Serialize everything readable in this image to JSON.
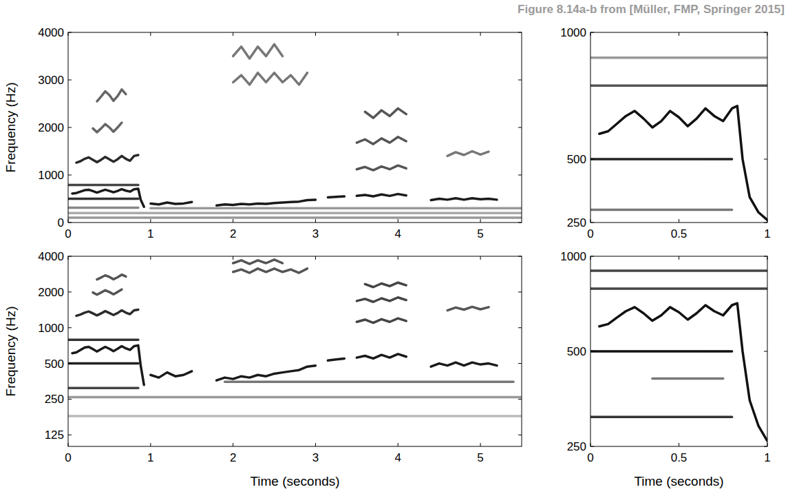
{
  "title": "Figure 8.14a-b from [Müller, FMP, Springer 2015]",
  "chart_data": [
    {
      "type": "line",
      "ylabel": "Frequency (Hz)",
      "xlim": [
        0,
        5.5
      ],
      "ylim": [
        0,
        4000
      ],
      "xticks": [
        0,
        1,
        2,
        3,
        4,
        5
      ],
      "yticks": [
        0,
        1000,
        2000,
        3000,
        4000
      ],
      "grid": false,
      "series": [
        {
          "color": "#1a1a1a",
          "x": [
            0.05,
            0.1,
            0.15,
            0.2,
            0.25,
            0.3,
            0.35,
            0.4,
            0.45,
            0.5,
            0.55,
            0.6,
            0.65,
            0.7,
            0.75,
            0.8,
            0.85,
            0.88,
            0.92,
            0.96,
            1.0,
            1.1,
            1.2,
            1.3,
            1.4,
            1.5,
            1.6,
            1.8,
            1.9,
            2.0,
            2.1,
            2.2,
            2.3,
            2.4,
            2.5,
            2.6,
            2.7,
            2.8,
            2.9,
            3.0,
            3.05,
            3.15,
            3.25,
            3.35,
            3.45,
            3.5,
            3.6,
            3.7,
            3.8,
            3.9,
            4.0,
            4.1,
            4.3,
            4.4,
            4.5,
            4.6,
            4.7,
            4.8,
            4.9,
            5.0,
            5.1,
            5.2
          ],
          "values": [
            610,
            620,
            650,
            680,
            690,
            660,
            630,
            660,
            690,
            665,
            635,
            665,
            700,
            670,
            650,
            700,
            710,
            480,
            330,
            null,
            400,
            380,
            420,
            390,
            400,
            430,
            null,
            360,
            380,
            370,
            390,
            380,
            400,
            390,
            410,
            420,
            430,
            440,
            470,
            480,
            null,
            530,
            540,
            550,
            null,
            560,
            580,
            550,
            590,
            560,
            600,
            570,
            null,
            470,
            500,
            480,
            510,
            480,
            510,
            490,
            500,
            480
          ]
        },
        {
          "color": "#2a2a2a",
          "x": [
            0.1,
            0.15,
            0.2,
            0.25,
            0.3,
            0.35,
            0.4,
            0.45,
            0.5,
            0.55,
            0.6,
            0.65,
            0.7,
            0.75,
            0.8,
            0.85
          ],
          "values": [
            1260,
            1290,
            1340,
            1370,
            1320,
            1270,
            1320,
            1380,
            1330,
            1280,
            1330,
            1400,
            1340,
            1300,
            1400,
            1420
          ]
        },
        {
          "color": "#666666",
          "x": [
            0.3,
            0.35,
            0.4,
            0.45,
            0.5,
            0.55,
            0.6,
            0.65
          ],
          "values": [
            1980,
            1900,
            1980,
            2070,
            2000,
            1910,
            2000,
            2100
          ]
        },
        {
          "color": "#666666",
          "x": [
            0.35,
            0.4,
            0.45,
            0.5,
            0.55,
            0.6,
            0.65,
            0.7
          ],
          "values": [
            2550,
            2650,
            2760,
            2680,
            2560,
            2660,
            2800,
            2700
          ]
        },
        {
          "color": "#777777",
          "x": [
            2.0,
            2.1,
            2.2,
            2.3,
            2.4,
            2.5,
            2.6,
            2.7,
            2.8,
            2.9
          ],
          "values": [
            2950,
            3100,
            2900,
            3150,
            2950,
            3150,
            2950,
            3100,
            2900,
            3150
          ]
        },
        {
          "color": "#777777",
          "x": [
            2.0,
            2.1,
            2.2,
            2.3,
            2.4,
            2.5,
            2.6
          ],
          "values": [
            3500,
            3700,
            3450,
            3700,
            3500,
            3750,
            3500
          ]
        },
        {
          "color": "#555555",
          "x": [
            3.5,
            3.6,
            3.7,
            3.8,
            3.9,
            4.0,
            4.1
          ],
          "values": [
            1120,
            1170,
            1100,
            1180,
            1120,
            1200,
            1140
          ]
        },
        {
          "color": "#555555",
          "x": [
            3.5,
            3.6,
            3.7,
            3.8,
            3.9,
            4.0,
            4.1
          ],
          "values": [
            1680,
            1750,
            1650,
            1770,
            1680,
            1800,
            1710
          ]
        },
        {
          "color": "#555555",
          "x": [
            3.6,
            3.7,
            3.8,
            3.9,
            4.0,
            4.1
          ],
          "values": [
            2330,
            2200,
            2360,
            2240,
            2400,
            2280
          ]
        },
        {
          "color": "#777777",
          "x": [
            4.6,
            4.7,
            4.8,
            4.9,
            5.0,
            5.1
          ],
          "values": [
            1400,
            1480,
            1420,
            1500,
            1430,
            1490
          ]
        },
        {
          "color": "#333333",
          "x": [
            0,
            0.85
          ],
          "values": [
            500,
            500
          ]
        },
        {
          "color": "#444444",
          "x": [
            0,
            0.85
          ],
          "values": [
            790,
            790
          ]
        },
        {
          "color": "#888888",
          "x": [
            0,
            0.85
          ],
          "values": [
            310,
            310
          ]
        },
        {
          "color": "#999999",
          "x": [
            0,
            5.5
          ],
          "values": [
            100,
            100
          ]
        },
        {
          "color": "#aaaaaa",
          "x": [
            0,
            5.5
          ],
          "values": [
            200,
            200
          ]
        },
        {
          "color": "#999999",
          "x": [
            1.0,
            5.5
          ],
          "values": [
            300,
            300
          ]
        }
      ]
    },
    {
      "type": "line",
      "xlim": [
        0,
        1
      ],
      "ylim": [
        250,
        1000
      ],
      "xticks": [
        0,
        0.5,
        1
      ],
      "yticks": [
        250,
        500,
        1000
      ],
      "grid": false,
      "series": [
        {
          "color": "#111111",
          "x": [
            0.05,
            0.1,
            0.15,
            0.2,
            0.25,
            0.3,
            0.35,
            0.4,
            0.45,
            0.5,
            0.55,
            0.6,
            0.65,
            0.7,
            0.75,
            0.8,
            0.83,
            0.86,
            0.9,
            0.95,
            1.0
          ],
          "values": [
            600,
            610,
            640,
            670,
            690,
            660,
            625,
            650,
            690,
            665,
            630,
            660,
            700,
            670,
            650,
            700,
            710,
            500,
            350,
            290,
            260
          ]
        },
        {
          "color": "#222222",
          "x": [
            0,
            0.8
          ],
          "values": [
            500,
            500
          ]
        },
        {
          "color": "#555555",
          "x": [
            0,
            1
          ],
          "values": [
            790,
            790
          ]
        },
        {
          "color": "#777777",
          "x": [
            0,
            0.8
          ],
          "values": [
            300,
            300
          ]
        },
        {
          "color": "#999999",
          "x": [
            0,
            1
          ],
          "values": [
            900,
            900
          ]
        }
      ]
    },
    {
      "type": "line",
      "ylabel": "Frequency (Hz)",
      "xlabel": "Time (seconds)",
      "log": "y",
      "xlim": [
        0,
        5.5
      ],
      "ylim": [
        100,
        4000
      ],
      "xticks": [
        0,
        1,
        2,
        3,
        4,
        5
      ],
      "yticks": [
        125,
        250,
        500,
        1000,
        2000,
        4000
      ],
      "grid": false,
      "series": [
        {
          "color": "#1a1a1a",
          "x": [
            0.05,
            0.1,
            0.15,
            0.2,
            0.25,
            0.3,
            0.35,
            0.4,
            0.45,
            0.5,
            0.55,
            0.6,
            0.65,
            0.7,
            0.75,
            0.8,
            0.85,
            0.88,
            0.92,
            0.96,
            1.0,
            1.1,
            1.2,
            1.3,
            1.4,
            1.5,
            1.6,
            1.8,
            1.9,
            2.0,
            2.1,
            2.2,
            2.3,
            2.4,
            2.5,
            2.6,
            2.7,
            2.8,
            2.9,
            3.0,
            3.05,
            3.15,
            3.25,
            3.35,
            3.45,
            3.5,
            3.6,
            3.7,
            3.8,
            3.9,
            4.0,
            4.1,
            4.3,
            4.4,
            4.5,
            4.6,
            4.7,
            4.8,
            4.9,
            5.0,
            5.1,
            5.2
          ],
          "values": [
            610,
            620,
            650,
            680,
            690,
            660,
            630,
            660,
            690,
            665,
            635,
            665,
            700,
            670,
            650,
            700,
            710,
            480,
            330,
            null,
            400,
            380,
            420,
            390,
            400,
            430,
            null,
            360,
            380,
            370,
            390,
            380,
            400,
            390,
            410,
            420,
            430,
            440,
            470,
            480,
            null,
            530,
            540,
            550,
            null,
            560,
            580,
            550,
            590,
            560,
            600,
            570,
            null,
            470,
            500,
            480,
            510,
            480,
            510,
            490,
            500,
            480
          ]
        },
        {
          "color": "#2a2a2a",
          "x": [
            0.1,
            0.15,
            0.2,
            0.25,
            0.3,
            0.35,
            0.4,
            0.45,
            0.5,
            0.55,
            0.6,
            0.65,
            0.7,
            0.75,
            0.8,
            0.85
          ],
          "values": [
            1260,
            1290,
            1340,
            1370,
            1320,
            1270,
            1320,
            1380,
            1330,
            1280,
            1330,
            1400,
            1340,
            1300,
            1400,
            1420
          ]
        },
        {
          "color": "#555555",
          "x": [
            0.3,
            0.35,
            0.4,
            0.45,
            0.5,
            0.55,
            0.6,
            0.65
          ],
          "values": [
            1980,
            1900,
            1980,
            2070,
            2000,
            1910,
            2000,
            2100
          ]
        },
        {
          "color": "#555555",
          "x": [
            0.35,
            0.4,
            0.45,
            0.5,
            0.55,
            0.6,
            0.65,
            0.7
          ],
          "values": [
            2550,
            2650,
            2760,
            2680,
            2560,
            2660,
            2800,
            2700
          ]
        },
        {
          "color": "#555555",
          "x": [
            2.0,
            2.1,
            2.2,
            2.3,
            2.4,
            2.5,
            2.6,
            2.7,
            2.8,
            2.9
          ],
          "values": [
            2950,
            3100,
            2900,
            3150,
            2950,
            3150,
            2950,
            3100,
            2900,
            3150
          ]
        },
        {
          "color": "#555555",
          "x": [
            2.0,
            2.1,
            2.2,
            2.3,
            2.4,
            2.5,
            2.6
          ],
          "values": [
            3500,
            3700,
            3450,
            3700,
            3500,
            3750,
            3500
          ]
        },
        {
          "color": "#444444",
          "x": [
            3.5,
            3.6,
            3.7,
            3.8,
            3.9,
            4.0,
            4.1
          ],
          "values": [
            1120,
            1170,
            1100,
            1180,
            1120,
            1200,
            1140
          ]
        },
        {
          "color": "#444444",
          "x": [
            3.5,
            3.6,
            3.7,
            3.8,
            3.9,
            4.0,
            4.1
          ],
          "values": [
            1680,
            1750,
            1650,
            1770,
            1680,
            1800,
            1710
          ]
        },
        {
          "color": "#444444",
          "x": [
            3.6,
            3.7,
            3.8,
            3.9,
            4.0,
            4.1
          ],
          "values": [
            2330,
            2200,
            2360,
            2240,
            2400,
            2280
          ]
        },
        {
          "color": "#555555",
          "x": [
            4.6,
            4.7,
            4.8,
            4.9,
            5.0,
            5.1
          ],
          "values": [
            1400,
            1480,
            1420,
            1500,
            1430,
            1490
          ]
        },
        {
          "color": "#222222",
          "x": [
            0,
            0.85
          ],
          "values": [
            500,
            500
          ]
        },
        {
          "color": "#333333",
          "x": [
            0,
            0.85
          ],
          "values": [
            790,
            790
          ]
        },
        {
          "color": "#444444",
          "x": [
            0,
            0.85
          ],
          "values": [
            310,
            310
          ]
        },
        {
          "color": "#bbbbbb",
          "x": [
            0,
            5.5
          ],
          "values": [
            180,
            180
          ]
        },
        {
          "color": "#999999",
          "x": [
            0,
            5.5
          ],
          "values": [
            260,
            260
          ]
        },
        {
          "color": "#777777",
          "x": [
            1.9,
            5.4
          ],
          "values": [
            350,
            350
          ]
        }
      ]
    },
    {
      "type": "line",
      "xlabel": "Time (seconds)",
      "log": "y",
      "xlim": [
        0,
        1
      ],
      "ylim": [
        250,
        1000
      ],
      "xticks": [
        0,
        0.5,
        1
      ],
      "yticks": [
        250,
        500,
        1000
      ],
      "grid": false,
      "series": [
        {
          "color": "#111111",
          "x": [
            0.05,
            0.1,
            0.15,
            0.2,
            0.25,
            0.3,
            0.35,
            0.4,
            0.45,
            0.5,
            0.55,
            0.6,
            0.65,
            0.7,
            0.75,
            0.8,
            0.83,
            0.86,
            0.9,
            0.95,
            1.0
          ],
          "values": [
            600,
            610,
            640,
            670,
            690,
            660,
            625,
            650,
            690,
            665,
            630,
            660,
            700,
            670,
            650,
            700,
            710,
            500,
            350,
            290,
            260
          ]
        },
        {
          "color": "#111111",
          "x": [
            0,
            0.8
          ],
          "values": [
            500,
            500
          ]
        },
        {
          "color": "#333333",
          "x": [
            0,
            0.8
          ],
          "values": [
            310,
            310
          ]
        },
        {
          "color": "#444444",
          "x": [
            0,
            1
          ],
          "values": [
            790,
            790
          ]
        },
        {
          "color": "#444444",
          "x": [
            0,
            1
          ],
          "values": [
            900,
            900
          ]
        },
        {
          "color": "#777777",
          "x": [
            0.35,
            0.75
          ],
          "values": [
            410,
            410
          ]
        }
      ]
    }
  ]
}
